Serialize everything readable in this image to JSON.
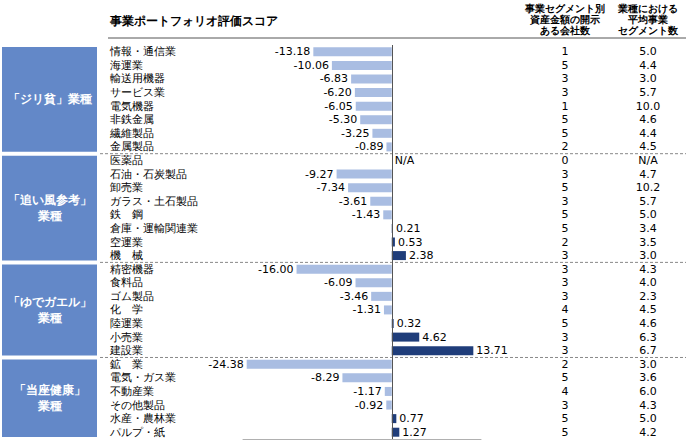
{
  "chart_data": {
    "type": "bar",
    "orientation": "horizontal",
    "title": "事業ポートフォリオ評価スコア",
    "categories": [
      "情報・通信業",
      "海運業",
      "輸送用機器",
      "サービス業",
      "電気機器",
      "非鉄金属",
      "繊維製品",
      "金属製品",
      "医薬品",
      "石油・石炭製品",
      "卸売業",
      "ガラス・土石製品",
      "鉄　鋼",
      "倉庫・運輸関連業",
      "空運業",
      "機　械",
      "精密機器",
      "食料品",
      "ゴム製品",
      "化　学",
      "陸運業",
      "小売業",
      "建設業",
      "鉱　業",
      "電気・ガス業",
      "不動産業",
      "その他製品",
      "水産・農林業",
      "パルプ・紙"
    ],
    "values": [
      -13.18,
      -10.06,
      -6.83,
      -6.2,
      -6.05,
      -5.3,
      -3.25,
      -0.89,
      null,
      -9.27,
      -7.34,
      -3.61,
      -1.43,
      0.21,
      0.53,
      2.38,
      -16.0,
      -6.09,
      -3.46,
      -1.31,
      0.32,
      4.62,
      13.71,
      -24.38,
      -8.29,
      -1.17,
      -0.92,
      0.77,
      1.27
    ],
    "value_labels": [
      "-13.18",
      "-10.06",
      "-6.83",
      "-6.20",
      "-6.05",
      "-5.30",
      "-3.25",
      "-0.89",
      "N/A",
      "-9.27",
      "-7.34",
      "-3.61",
      "-1.43",
      "0.21",
      "0.53",
      "2.38",
      "-16.00",
      "-6.09",
      "-3.46",
      "-1.31",
      "0.32",
      "4.62",
      "13.71",
      "-24.38",
      "-8.29",
      "-1.17",
      "-0.92",
      "0.77",
      "1.27"
    ],
    "colors": [
      "#a9bde2",
      "#a9bde2",
      "#a9bde2",
      "#a9bde2",
      "#a9bde2",
      "#a9bde2",
      "#a9bde2",
      "#a9bde2",
      "#a9bde2",
      "#a9bde2",
      "#a9bde2",
      "#a9bde2",
      "#a9bde2",
      "#1f3d7a",
      "#1f3d7a",
      "#1f3d7a",
      "#a9bde2",
      "#a9bde2",
      "#a9bde2",
      "#a9bde2",
      "#1f3d7a",
      "#1f3d7a",
      "#1f3d7a",
      "#a9bde2",
      "#a9bde2",
      "#a9bde2",
      "#a9bde2",
      "#1f3d7a",
      "#1f3d7a"
    ],
    "groups": [
      "「ジリ貧」業種",
      "「ジリ貧」業種",
      "「ジリ貧」業種",
      "「ジリ貧」業種",
      "「ジリ貧」業種",
      "「ジリ貧」業種",
      "「ジリ貧」業種",
      "「ジリ貧」業種",
      "「追い風参考」\n業種",
      "「追い風参考」\n業種",
      "「追い風参考」\n業種",
      "「追い風参考」\n業種",
      "「追い風参考」\n業種",
      "「追い風参考」\n業種",
      "「追い風参考」\n業種",
      "「追い風参考」\n業種",
      "「ゆでガエル」\n業種",
      "「ゆでガエル」\n業種",
      "「ゆでガエル」\n業種",
      "「ゆでガエル」\n業種",
      "「ゆでガエル」\n業種",
      "「ゆでガエル」\n業種",
      "「ゆでガエル」\n業種",
      "「当座健康」\n業種",
      "「当座健康」\n業種",
      "「当座健康」\n業種",
      "「当座健康」\n業種",
      "「当座健康」\n業種",
      "「当座健康」\n業種"
    ],
    "segment_disclosure_companies": {
      "header": "事業セグメント別\n資産金額の開示\nある会社数",
      "values": [
        1,
        5,
        3,
        3,
        1,
        5,
        5,
        2,
        0,
        3,
        5,
        3,
        5,
        5,
        2,
        3,
        3,
        3,
        3,
        4,
        5,
        3,
        3,
        2,
        5,
        4,
        3,
        5,
        5
      ]
    },
    "average_segments": {
      "header": "業種における\n平均事業\nセグメント数",
      "values": [
        5.0,
        4.4,
        3.0,
        5.7,
        10.0,
        4.6,
        4.4,
        4.5,
        null,
        4.7,
        10.2,
        5.7,
        5.0,
        3.4,
        3.5,
        3.0,
        4.3,
        4.0,
        2.3,
        4.5,
        4.6,
        6.3,
        6.7,
        3.0,
        3.6,
        6.0,
        4.3,
        5.0,
        4.2
      ],
      "value_labels": [
        "5.0",
        "4.4",
        "3.0",
        "5.7",
        "10.0",
        "4.6",
        "4.4",
        "4.5",
        "N/A",
        "4.7",
        "10.2",
        "5.7",
        "5.0",
        "3.4",
        "3.5",
        "3.0",
        "4.3",
        "4.0",
        "2.3",
        "4.5",
        "4.6",
        "6.3",
        "6.7",
        "3.0",
        "3.6",
        "6.0",
        "4.3",
        "5.0",
        "4.2"
      ]
    },
    "xlim": [
      -25,
      15
    ],
    "grid": false,
    "data_labels": true,
    "tick_labels": "y"
  }
}
